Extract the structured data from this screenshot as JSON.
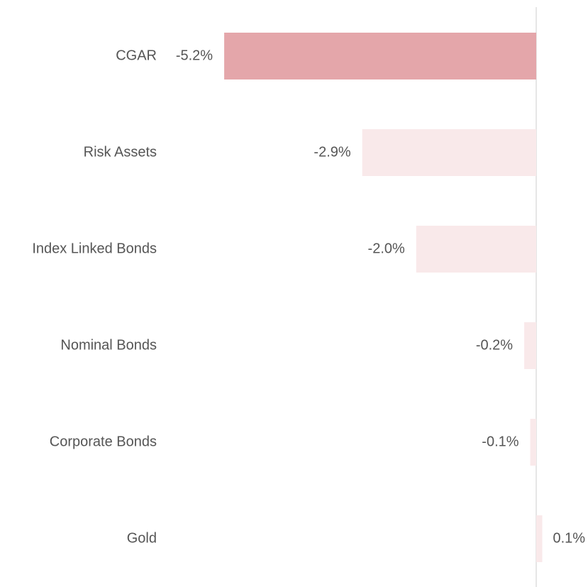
{
  "chart_data": {
    "type": "barh",
    "categories": [
      "CGAR",
      "Risk Assets",
      "Index Linked Bonds",
      "Nominal Bonds",
      "Corporate Bonds",
      "Gold"
    ],
    "values": [
      -5.2,
      -2.9,
      -2.0,
      -0.2,
      -0.1,
      0.1
    ],
    "value_labels": [
      "-5.2%",
      "-2.9%",
      "-2.0%",
      "-0.2%",
      "-0.1%",
      "0.1%"
    ],
    "colors": [
      "#e4a6aa",
      "#f9e9ea",
      "#f9e9ea",
      "#f9e9ea",
      "#f9e9ea",
      "#f9e9ea"
    ]
  }
}
